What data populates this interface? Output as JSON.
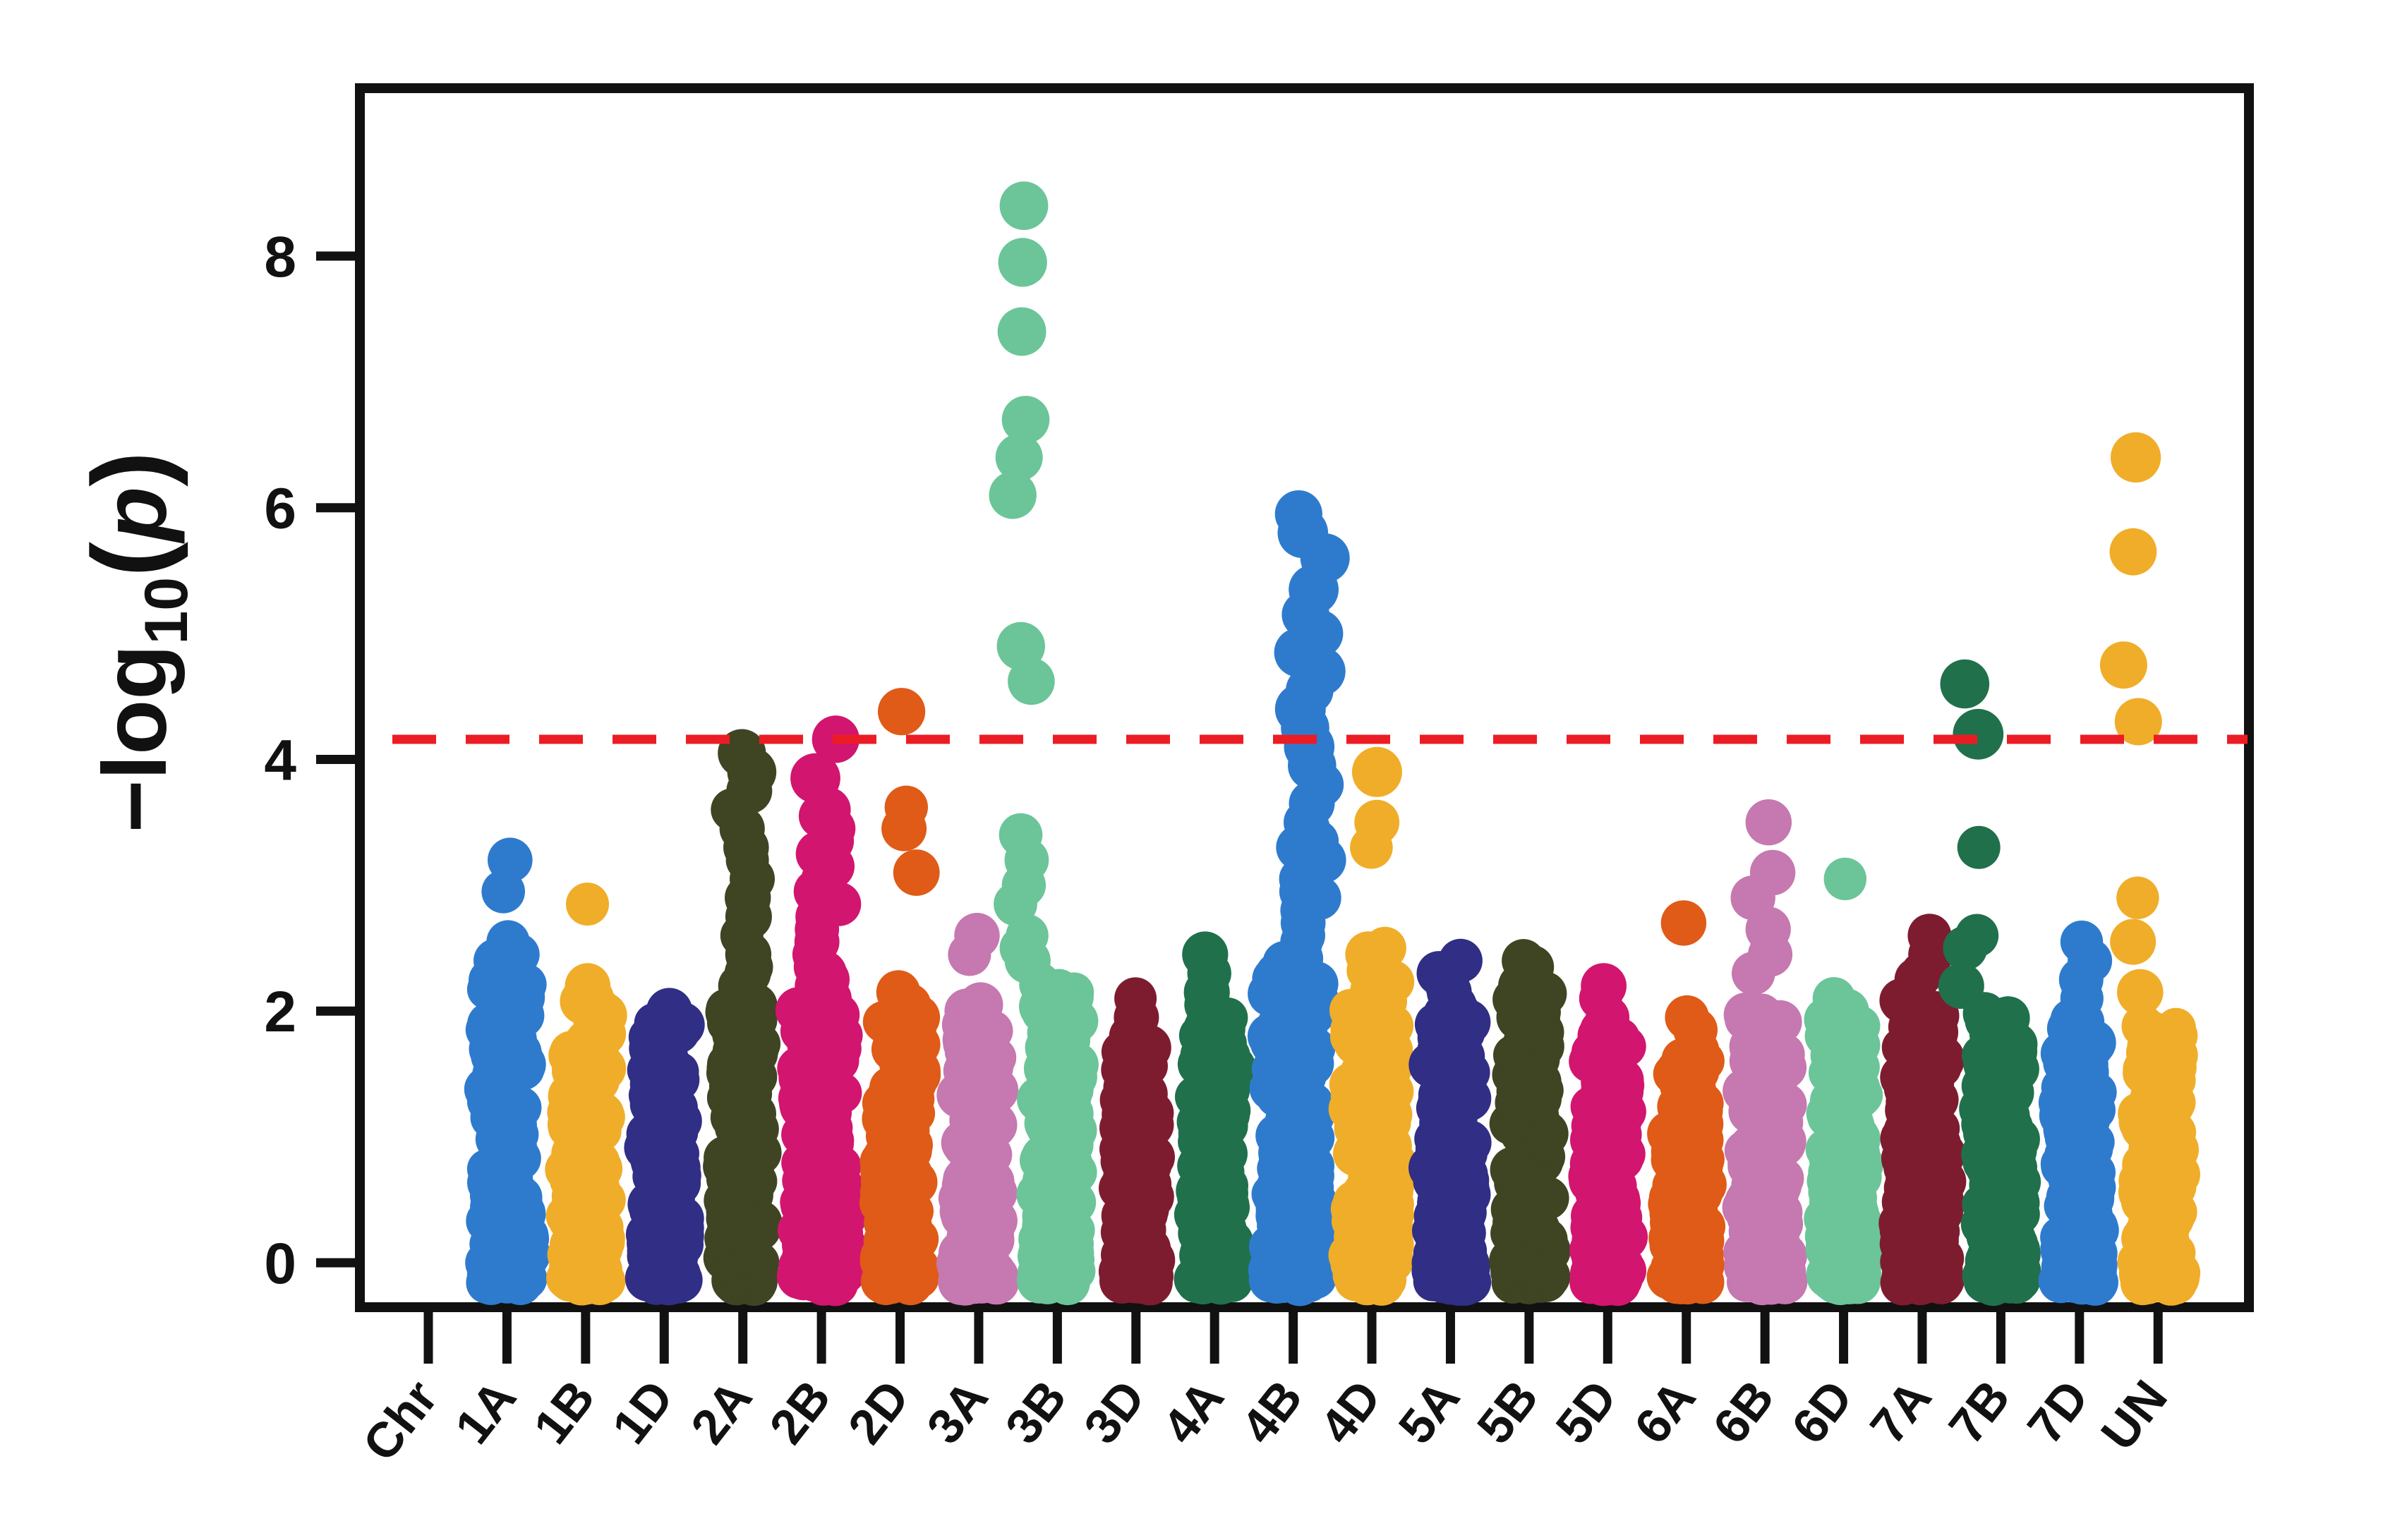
{
  "figure": {
    "kind": "GWAS Manhattan plot",
    "background_color": "#ffffff",
    "axis_color": "#111111"
  },
  "y_axis": {
    "label": "-log10(p)",
    "label_main": "−log",
    "label_sub": "10",
    "label_open": "(",
    "label_var": "p",
    "label_close": ")",
    "tick_labels": [
      "8",
      "6",
      "4",
      "2",
      "0"
    ]
  },
  "x_axis": {
    "axis_label": "Chr",
    "tick_labels": [
      "Chr",
      "1A",
      "1B",
      "1D",
      "2A",
      "2B",
      "2D",
      "3A",
      "3B",
      "3D",
      "4A",
      "4B",
      "4D",
      "5A",
      "5B",
      "5D",
      "6A",
      "6B",
      "6D",
      "7A",
      "7B",
      "7D",
      "UN"
    ]
  },
  "chart_data": {
    "type": "scatter",
    "subtype": "manhattan",
    "title": "",
    "xlabel": "Chr",
    "ylabel": "-log10(p)",
    "ylim": [
      -0.35,
      9.3
    ],
    "y_ticks": [
      0,
      2,
      4,
      6,
      8
    ],
    "x_categories": [
      "Chr",
      "1A",
      "1B",
      "1D",
      "2A",
      "2B",
      "2D",
      "3A",
      "3B",
      "3D",
      "4A",
      "4B",
      "4D",
      "5A",
      "5B",
      "5D",
      "6A",
      "6B",
      "6D",
      "7A",
      "7B",
      "7D",
      "UN"
    ],
    "grid": false,
    "legend": "none",
    "threshold_line": {
      "value": 4.16,
      "color": "#ec1c24",
      "style": "dashed"
    },
    "palette_cycle": [
      "#2e7bce",
      "#f0ad29",
      "#312e85",
      "#3f4423",
      "#d2156f",
      "#df5b17",
      "#c678b0",
      "#6bc598",
      "#7e1c2f",
      "#20704c"
    ],
    "chromosomes": [
      {
        "label": "1A",
        "color": "#2e7bce",
        "base_max": 2.35,
        "w": 29,
        "pdx": 0,
        "peaks": [
          3.2,
          2.95,
          2.55,
          2.45,
          2.4
        ]
      },
      {
        "label": "1B",
        "color": "#f0ad29",
        "base_max": 2.1,
        "w": 27,
        "pdx": 0,
        "peaks": [
          2.85,
          2.2,
          2.1
        ]
      },
      {
        "label": "1D",
        "color": "#312e85",
        "base_max": 1.95,
        "w": 25,
        "pdx": 0,
        "peaks": [
          2.0,
          1.9
        ]
      },
      {
        "label": "2A",
        "color": "#3f4423",
        "base_max": 2.05,
        "w": 25,
        "pdx": 0,
        "peaks": [
          4.05,
          3.9,
          3.75,
          3.6,
          3.45,
          3.3,
          3.2,
          3.05,
          2.9,
          2.75,
          2.6,
          2.45,
          2.35,
          2.3,
          2.2
        ]
      },
      {
        "label": "2B",
        "color": "#d2156f",
        "base_max": 2.1,
        "w": 33,
        "pdx": 8,
        "peaks": [
          4.16,
          3.85,
          3.6,
          3.55,
          3.45,
          3.35,
          3.25,
          3.15,
          3.05,
          2.95,
          2.85,
          2.75,
          2.65,
          2.55,
          2.45,
          2.35,
          2.3,
          2.25,
          2.2
        ]
      },
      {
        "label": "2D",
        "color": "#df5b17",
        "base_max": 1.95,
        "w": 27,
        "pdx": 8,
        "peaks": [
          4.38,
          3.62,
          3.45,
          3.1,
          2.15,
          2.05,
          1.95
        ]
      },
      {
        "label": "3A",
        "color": "#c678b0",
        "base_max": 1.95,
        "w": 27,
        "pdx": 0,
        "peaks": [
          2.6,
          2.45,
          2.05,
          2.0
        ]
      },
      {
        "label": "3B",
        "color": "#6bc598",
        "base_max": 2.25,
        "w": 27,
        "pdx": -50,
        "peaks": [
          8.4,
          7.95,
          7.4,
          6.7,
          6.4,
          6.1,
          4.9,
          4.62,
          3.4,
          3.2,
          3.0,
          2.85,
          2.6,
          2.5,
          2.4
        ]
      },
      {
        "label": "3D",
        "color": "#7e1c2f",
        "base_max": 1.75,
        "w": 23,
        "pdx": 0,
        "peaks": [
          2.1,
          1.95,
          1.8
        ]
      },
      {
        "label": "4A",
        "color": "#20704c",
        "base_max": 1.95,
        "w": 27,
        "pdx": 0,
        "peaks": [
          2.45,
          2.3,
          2.15,
          2.05
        ]
      },
      {
        "label": "4B",
        "color": "#2e7bce",
        "base_max": 2.45,
        "w": 33,
        "pdx": 25,
        "peaks": [
          5.95,
          5.8,
          5.6,
          5.35,
          5.15,
          5.0,
          4.85,
          4.7,
          4.55,
          4.4,
          4.25,
          4.1,
          3.95,
          3.8,
          3.65,
          3.5,
          3.45,
          3.35,
          3.3,
          3.2,
          3.05,
          2.95,
          2.9,
          2.8,
          2.7,
          2.6,
          2.55
        ]
      },
      {
        "label": "4D",
        "color": "#f0ad29",
        "base_max": 2.35,
        "w": 31,
        "pdx": 0,
        "peaks": [
          3.9,
          3.5,
          3.3,
          2.5,
          2.45
        ]
      },
      {
        "label": "5A",
        "color": "#312e85",
        "base_max": 2.05,
        "w": 27,
        "pdx": 0,
        "peaks": [
          2.4,
          2.3,
          2.2,
          2.15
        ]
      },
      {
        "label": "5B",
        "color": "#3f4423",
        "base_max": 2.15,
        "w": 27,
        "pdx": 0,
        "peaks": [
          2.4,
          2.35,
          2.2
        ]
      },
      {
        "label": "5D",
        "color": "#d2156f",
        "base_max": 1.85,
        "w": 25,
        "pdx": 0,
        "peaks": [
          2.2,
          2.1,
          1.95
        ]
      },
      {
        "label": "6A",
        "color": "#df5b17",
        "base_max": 1.7,
        "w": 25,
        "pdx": 0,
        "peaks": [
          2.7,
          1.95,
          1.85
        ]
      },
      {
        "label": "6B",
        "color": "#c678b0",
        "base_max": 2.0,
        "w": 29,
        "pdx": 0,
        "peaks": [
          3.5,
          3.1,
          2.9,
          2.65,
          2.45,
          2.3
        ]
      },
      {
        "label": "6D",
        "color": "#6bc598",
        "base_max": 1.95,
        "w": 27,
        "pdx": 0,
        "peaks": [
          3.05,
          2.1,
          2.0
        ]
      },
      {
        "label": "7A",
        "color": "#7e1c2f",
        "base_max": 2.1,
        "w": 31,
        "pdx": 0,
        "peaks": [
          2.6,
          2.45,
          2.3,
          2.25
        ]
      },
      {
        "label": "7B",
        "color": "#20704c",
        "base_max": 2.0,
        "w": 27,
        "pdx": -45,
        "peaks": [
          4.6,
          4.2,
          3.3,
          2.6,
          2.5,
          2.2
        ]
      },
      {
        "label": "7D",
        "color": "#2e7bce",
        "base_max": 1.95,
        "w": 27,
        "pdx": 0,
        "peaks": [
          2.55,
          2.4,
          2.25,
          2.1
        ]
      },
      {
        "label": "UN",
        "color": "#f0ad29",
        "base_max": 1.9,
        "w": 29,
        "pdx": -40,
        "peaks": [
          6.4,
          5.65,
          4.75,
          4.3,
          2.9,
          2.55,
          2.15
        ]
      }
    ]
  }
}
